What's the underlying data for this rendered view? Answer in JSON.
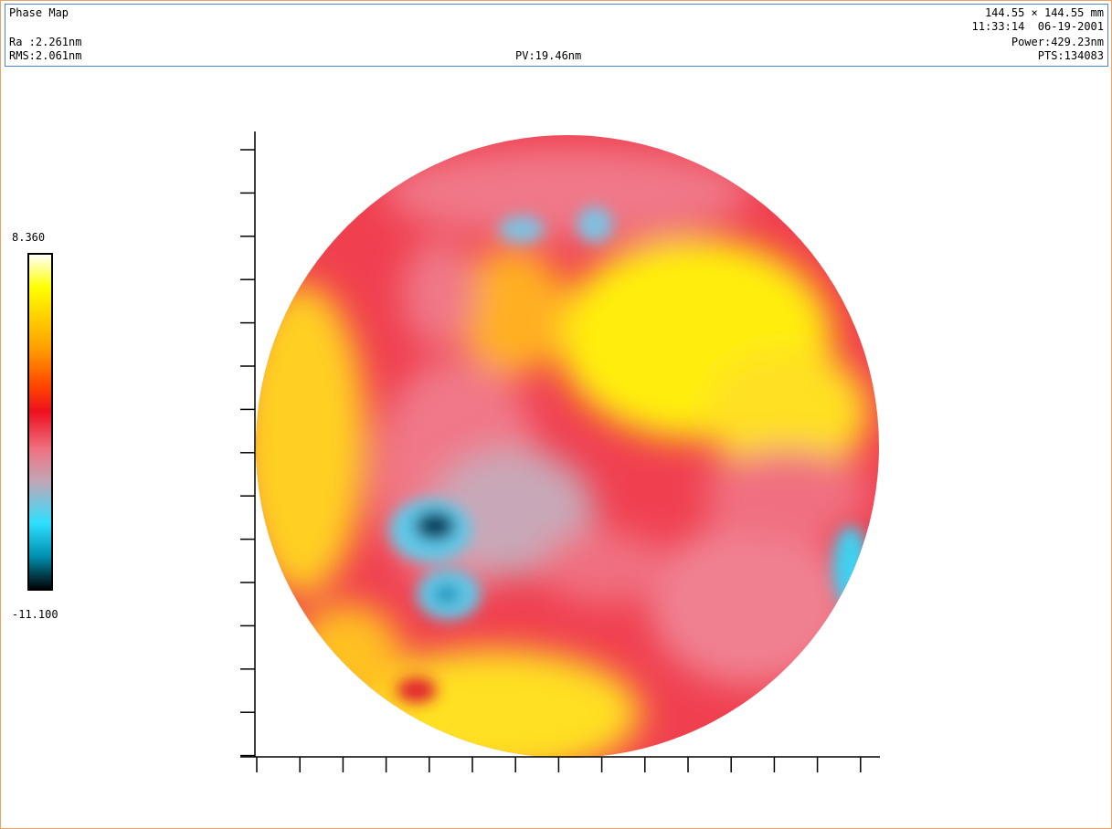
{
  "header": {
    "title": "Phase Map",
    "size": "144.55 × 144.55 mm",
    "timestamp": "11:33:14  06-19-2001",
    "ra": "Ra :2.261nm",
    "rms": "RMS:2.061nm",
    "pv": "PV:19.46nm",
    "power": "Power:429.23nm",
    "pts": "PTS:134083"
  },
  "colorbar": {
    "max_label": "8.360",
    "min_label": "-11.100"
  }
}
